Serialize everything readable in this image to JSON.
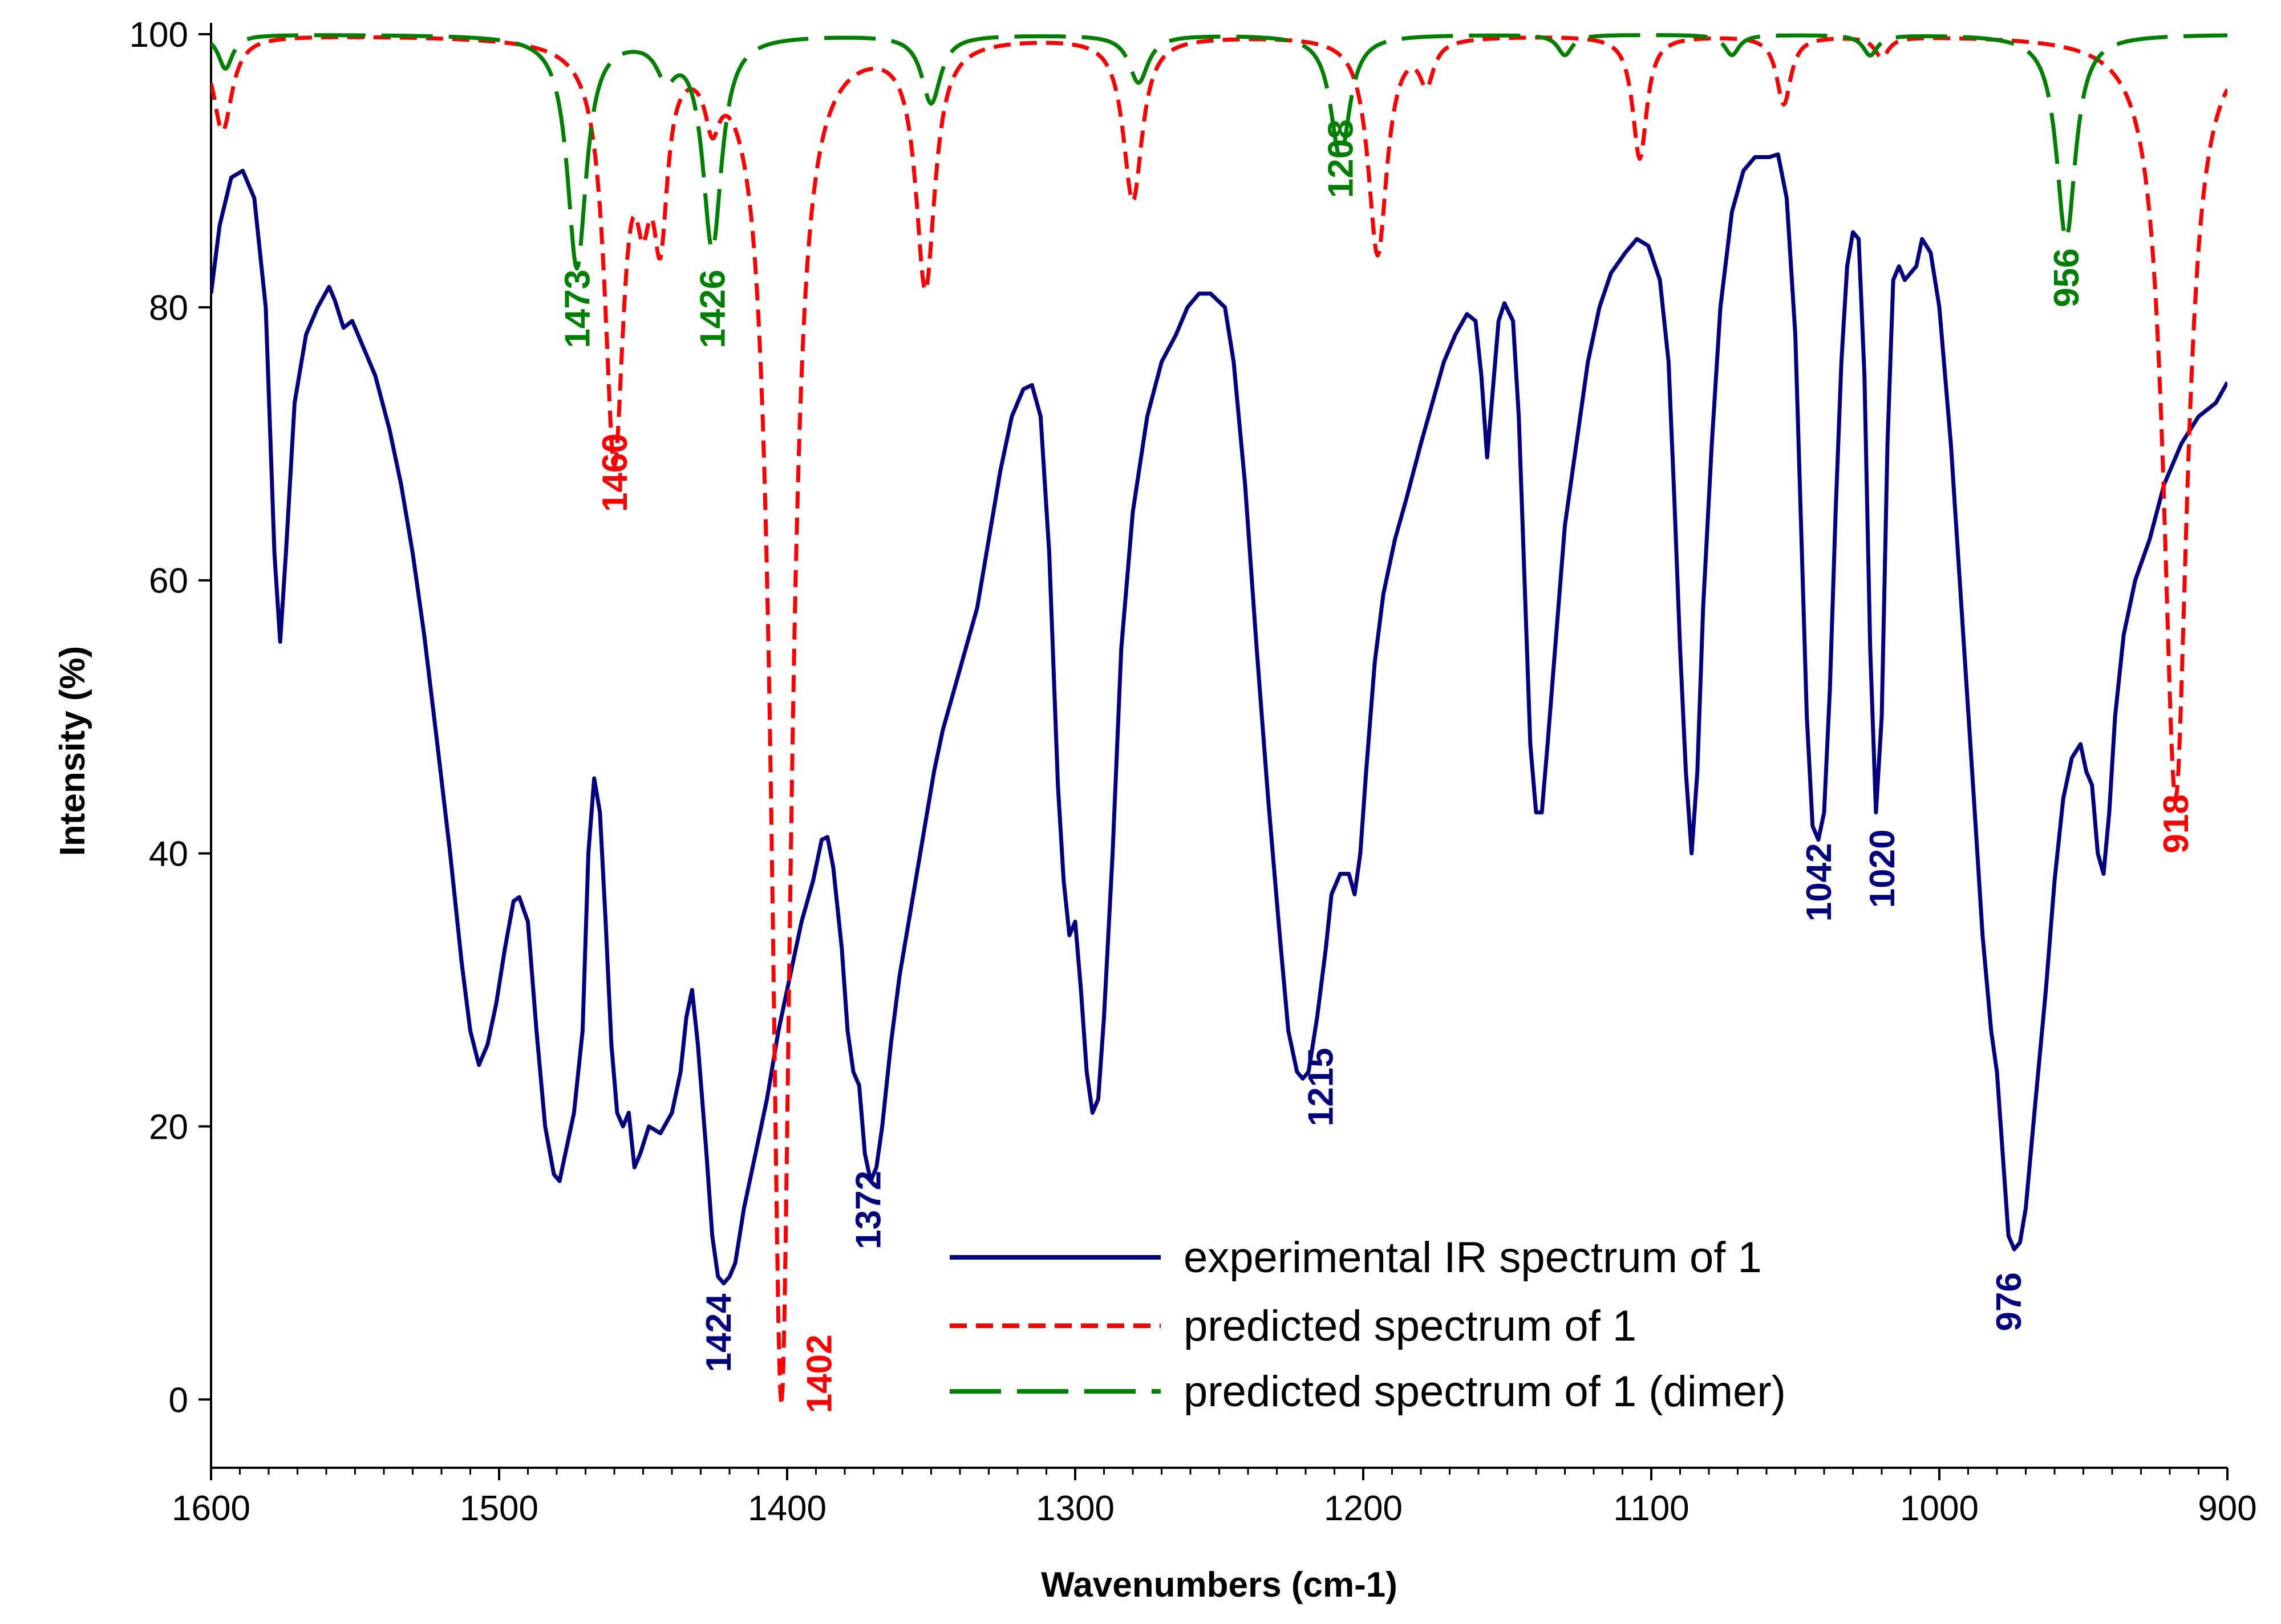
{
  "chart_data": {
    "type": "line",
    "title": "",
    "xlabel": "Wavenumbers (cm-1)",
    "ylabel": "Intensity (%)",
    "xlim": [
      1600,
      900
    ],
    "ylim": [
      -5,
      100
    ],
    "x_reversed": true,
    "x_ticks": [
      "1600",
      "1500",
      "1400",
      "1300",
      "1200",
      "1100",
      "1000",
      "900"
    ],
    "y_ticks": [
      "0",
      "20",
      "40",
      "60",
      "80",
      "100"
    ],
    "legend_position": "bottom-center",
    "grid": false,
    "series": [
      {
        "name": "experimental IR spectrum of 1",
        "color": "#000080",
        "style": "solid",
        "points": [
          [
            1600,
            81
          ],
          [
            1597,
            86
          ],
          [
            1593,
            89.5
          ],
          [
            1589,
            90
          ],
          [
            1585,
            88
          ],
          [
            1581,
            80
          ],
          [
            1578,
            62
          ],
          [
            1576,
            55.5
          ],
          [
            1574,
            62
          ],
          [
            1571,
            73
          ],
          [
            1567,
            78
          ],
          [
            1563,
            80
          ],
          [
            1559,
            81.5
          ],
          [
            1557,
            80.5
          ],
          [
            1554,
            78.5
          ],
          [
            1551,
            79
          ],
          [
            1547,
            77
          ],
          [
            1543,
            75
          ],
          [
            1538,
            71
          ],
          [
            1534,
            67
          ],
          [
            1530,
            62
          ],
          [
            1526,
            56
          ],
          [
            1522,
            49
          ],
          [
            1517,
            40
          ],
          [
            1513,
            32
          ],
          [
            1510,
            27
          ],
          [
            1507,
            24.5
          ],
          [
            1504,
            26
          ],
          [
            1501,
            29
          ],
          [
            1498,
            33
          ],
          [
            1495,
            36.5
          ],
          [
            1493,
            36.8
          ],
          [
            1490,
            35
          ],
          [
            1487,
            27
          ],
          [
            1484,
            20
          ],
          [
            1481,
            16.5
          ],
          [
            1479,
            16
          ],
          [
            1477,
            18
          ],
          [
            1474,
            21
          ],
          [
            1471,
            27
          ],
          [
            1469,
            40
          ],
          [
            1467,
            45.5
          ],
          [
            1465,
            43
          ],
          [
            1463,
            35
          ],
          [
            1461,
            26
          ],
          [
            1459,
            21
          ],
          [
            1457,
            20
          ],
          [
            1455,
            21
          ],
          [
            1453,
            17
          ],
          [
            1451,
            18
          ],
          [
            1448,
            20
          ],
          [
            1444,
            19.5
          ],
          [
            1440,
            21
          ],
          [
            1437,
            24
          ],
          [
            1435,
            28
          ],
          [
            1433,
            30
          ],
          [
            1431,
            26
          ],
          [
            1428,
            18
          ],
          [
            1426,
            12
          ],
          [
            1424,
            9
          ],
          [
            1422,
            8.5
          ],
          [
            1420,
            9
          ],
          [
            1418,
            10
          ],
          [
            1415,
            14
          ],
          [
            1411,
            18
          ],
          [
            1407,
            22
          ],
          [
            1403,
            27
          ],
          [
            1399,
            31
          ],
          [
            1395,
            35
          ],
          [
            1391,
            38
          ],
          [
            1388,
            41
          ],
          [
            1386,
            41.2
          ],
          [
            1384,
            39
          ],
          [
            1381,
            33
          ],
          [
            1379,
            27
          ],
          [
            1377,
            24
          ],
          [
            1375,
            23
          ],
          [
            1373,
            18
          ],
          [
            1371,
            16
          ],
          [
            1369,
            17
          ],
          [
            1367,
            20
          ],
          [
            1364,
            26
          ],
          [
            1361,
            31
          ],
          [
            1357,
            36
          ],
          [
            1353,
            41
          ],
          [
            1349,
            46
          ],
          [
            1346,
            49
          ],
          [
            1342,
            52
          ],
          [
            1338,
            55
          ],
          [
            1334,
            58
          ],
          [
            1330,
            63
          ],
          [
            1326,
            68
          ],
          [
            1322,
            72
          ],
          [
            1318,
            74
          ],
          [
            1315,
            74.3
          ],
          [
            1312,
            72
          ],
          [
            1309,
            62
          ],
          [
            1306,
            45
          ],
          [
            1304,
            38
          ],
          [
            1302,
            34
          ],
          [
            1300,
            35
          ],
          [
            1298,
            30
          ],
          [
            1296,
            24
          ],
          [
            1294,
            21
          ],
          [
            1292,
            22
          ],
          [
            1290,
            28
          ],
          [
            1287,
            40
          ],
          [
            1284,
            55
          ],
          [
            1280,
            65
          ],
          [
            1275,
            72
          ],
          [
            1270,
            76
          ],
          [
            1265,
            78
          ],
          [
            1261,
            80
          ],
          [
            1257,
            81
          ],
          [
            1253,
            81
          ],
          [
            1248,
            80
          ],
          [
            1245,
            76
          ],
          [
            1241,
            67
          ],
          [
            1237,
            55
          ],
          [
            1233,
            44
          ],
          [
            1229,
            34
          ],
          [
            1226,
            27
          ],
          [
            1223,
            24
          ],
          [
            1221,
            23.5
          ],
          [
            1219,
            24
          ],
          [
            1216,
            28
          ],
          [
            1213,
            33
          ],
          [
            1211,
            37
          ],
          [
            1208,
            38.5
          ],
          [
            1205,
            38.5
          ],
          [
            1203,
            37
          ],
          [
            1201,
            40
          ],
          [
            1199,
            46
          ],
          [
            1196,
            54
          ],
          [
            1193,
            59
          ],
          [
            1189,
            63
          ],
          [
            1185,
            66
          ],
          [
            1180,
            70
          ],
          [
            1176,
            73
          ],
          [
            1172,
            76
          ],
          [
            1168,
            78
          ],
          [
            1164,
            79.5
          ],
          [
            1161,
            79
          ],
          [
            1159,
            75
          ],
          [
            1157,
            69
          ],
          [
            1155,
            74
          ],
          [
            1153,
            79
          ],
          [
            1151,
            80.3
          ],
          [
            1148,
            79
          ],
          [
            1146,
            72
          ],
          [
            1144,
            60
          ],
          [
            1142,
            48
          ],
          [
            1140,
            43
          ],
          [
            1138,
            43
          ],
          [
            1136,
            48
          ],
          [
            1133,
            56
          ],
          [
            1130,
            64
          ],
          [
            1126,
            70
          ],
          [
            1122,
            76
          ],
          [
            1118,
            80
          ],
          [
            1114,
            82.5
          ],
          [
            1109,
            84
          ],
          [
            1105,
            85
          ],
          [
            1101,
            84.5
          ],
          [
            1097,
            82
          ],
          [
            1094,
            76
          ],
          [
            1092,
            66
          ],
          [
            1090,
            55
          ],
          [
            1088,
            46
          ],
          [
            1086,
            40
          ],
          [
            1084,
            46
          ],
          [
            1082,
            58
          ],
          [
            1079,
            70
          ],
          [
            1076,
            80
          ],
          [
            1072,
            87
          ],
          [
            1068,
            90
          ],
          [
            1064,
            91
          ],
          [
            1059,
            91
          ],
          [
            1056,
            91.2
          ],
          [
            1053,
            88
          ],
          [
            1050,
            78
          ],
          [
            1048,
            64
          ],
          [
            1046,
            50
          ],
          [
            1044,
            42
          ],
          [
            1042,
            41
          ],
          [
            1040,
            43
          ],
          [
            1038,
            52
          ],
          [
            1036,
            65
          ],
          [
            1034,
            76
          ],
          [
            1032,
            83
          ],
          [
            1030,
            85.5
          ],
          [
            1028,
            85
          ],
          [
            1026,
            75
          ],
          [
            1024,
            55
          ],
          [
            1022,
            43
          ],
          [
            1020,
            50
          ],
          [
            1018,
            70
          ],
          [
            1016,
            82
          ],
          [
            1014,
            83
          ],
          [
            1012,
            82
          ],
          [
            1010,
            82.5
          ],
          [
            1008,
            83
          ],
          [
            1006,
            85
          ],
          [
            1003,
            84
          ],
          [
            1000,
            80
          ],
          [
            996,
            70
          ],
          [
            992,
            57
          ],
          [
            988,
            44
          ],
          [
            985,
            34
          ],
          [
            982,
            27
          ],
          [
            980,
            24
          ],
          [
            978,
            18
          ],
          [
            976,
            12
          ],
          [
            974,
            11
          ],
          [
            972,
            11.5
          ],
          [
            970,
            14
          ],
          [
            967,
            21
          ],
          [
            963,
            30
          ],
          [
            960,
            38
          ],
          [
            957,
            44
          ],
          [
            954,
            47
          ],
          [
            951,
            48
          ],
          [
            949,
            46
          ],
          [
            947,
            45
          ],
          [
            945,
            40
          ],
          [
            943,
            38.5
          ],
          [
            941,
            43
          ],
          [
            939,
            50
          ],
          [
            936,
            56
          ],
          [
            932,
            60
          ],
          [
            927,
            63
          ],
          [
            922,
            67
          ],
          [
            916,
            70
          ],
          [
            910,
            72
          ],
          [
            904,
            73
          ],
          [
            900,
            74.5
          ]
        ]
      },
      {
        "name": "predicted spectrum of 1",
        "color": "#ff0000",
        "style": "dashed",
        "peaks": [
          [
            1596,
            7,
            4
          ],
          [
            1460,
            30,
            4
          ],
          [
            1450,
            8,
            3
          ],
          [
            1444,
            12,
            3
          ],
          [
            1426,
            4,
            3
          ],
          [
            1402,
            100,
            4
          ],
          [
            1352,
            18,
            4
          ],
          [
            1280,
            12,
            4
          ],
          [
            1195,
            16,
            4
          ],
          [
            1178,
            3,
            3
          ],
          [
            1104,
            9,
            3
          ],
          [
            1054,
            5,
            3
          ],
          [
            1020,
            1.5,
            3
          ],
          [
            918,
            56,
            5
          ]
        ]
      },
      {
        "name": "predicted spectrum of 1 (dimer)",
        "color": "#008000",
        "style": "longdash",
        "peaks": [
          [
            1595,
            2.5,
            3
          ],
          [
            1473,
            17,
            4
          ],
          [
            1442,
            2.5,
            4
          ],
          [
            1426,
            15.5,
            4
          ],
          [
            1350,
            5,
            4
          ],
          [
            1278,
            3.5,
            4
          ],
          [
            1208,
            9,
            4
          ],
          [
            1130,
            1.5,
            3
          ],
          [
            1072,
            1.5,
            3
          ],
          [
            1024,
            1.5,
            3
          ],
          [
            956,
            15,
            4
          ]
        ]
      }
    ],
    "annotations": [
      {
        "text": "1473",
        "x": 1473,
        "y": 77,
        "color": "#008000",
        "series": "predicted spectrum of 1 (dimer)"
      },
      {
        "text": "1426",
        "x": 1426,
        "y": 77,
        "color": "#008000",
        "series": "predicted spectrum of 1 (dimer)"
      },
      {
        "text": "1208",
        "x": 1208,
        "y": 88,
        "color": "#008000",
        "series": "predicted spectrum of 1 (dimer)"
      },
      {
        "text": "956",
        "x": 956,
        "y": 80,
        "color": "#008000",
        "series": "predicted spectrum of 1 (dimer)"
      },
      {
        "text": "1460",
        "x": 1460,
        "y": 65,
        "color": "#ff0000",
        "series": "predicted spectrum of 1"
      },
      {
        "text": "1402",
        "x": 1389,
        "y": -1,
        "color": "#ff0000",
        "series": "predicted spectrum of 1"
      },
      {
        "text": "918",
        "x": 918,
        "y": 40,
        "color": "#ff0000",
        "series": "predicted spectrum of 1"
      },
      {
        "text": "1424",
        "x": 1424,
        "y": 2,
        "color": "#000080",
        "series": "experimental IR spectrum of 1"
      },
      {
        "text": "1372",
        "x": 1372,
        "y": 11,
        "color": "#000080",
        "series": "experimental IR spectrum of 1"
      },
      {
        "text": "1215",
        "x": 1215,
        "y": 20,
        "color": "#000080",
        "series": "experimental IR spectrum of 1"
      },
      {
        "text": "1042",
        "x": 1042,
        "y": 35,
        "color": "#000080",
        "series": "experimental IR spectrum of 1"
      },
      {
        "text": "1020",
        "x": 1020,
        "y": 36,
        "color": "#000080",
        "series": "experimental IR spectrum of 1"
      },
      {
        "text": "976",
        "x": 976,
        "y": 5,
        "color": "#000080",
        "series": "experimental IR spectrum of 1"
      }
    ]
  }
}
